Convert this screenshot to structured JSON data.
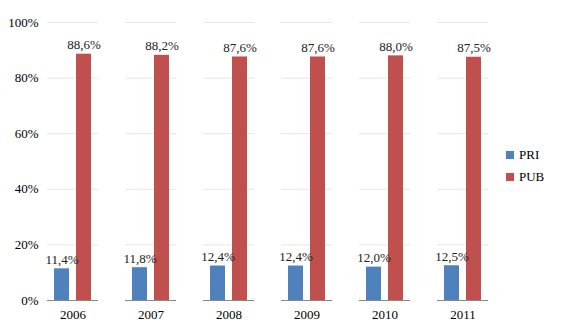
{
  "chart_data": {
    "type": "bar",
    "categories": [
      "2006",
      "2007",
      "2008",
      "2009",
      "2010",
      "2011"
    ],
    "series": [
      {
        "name": "PRI",
        "color": "#4f81bd",
        "values": [
          11.4,
          11.8,
          12.4,
          12.4,
          12.0,
          12.5
        ],
        "value_labels": [
          "11,4%",
          "11,8%",
          "12,4%",
          "12,4%",
          "12,0%",
          "12,5%"
        ]
      },
      {
        "name": "PUB",
        "color": "#c0504d",
        "values": [
          88.6,
          88.2,
          87.6,
          87.6,
          88.0,
          87.5
        ],
        "value_labels": [
          "88,6%",
          "88,2%",
          "87,6%",
          "87,6%",
          "88,0%",
          "87,5%"
        ]
      }
    ],
    "ylim": [
      0,
      100
    ],
    "yticks": [
      {
        "value": 0,
        "label": "0%"
      },
      {
        "value": 20,
        "label": "20%"
      },
      {
        "value": 40,
        "label": "40%"
      },
      {
        "value": 60,
        "label": "60%"
      },
      {
        "value": 80,
        "label": "80%"
      },
      {
        "value": 100,
        "label": "100%"
      }
    ],
    "grid": true,
    "data_labels": true,
    "legend": "right"
  }
}
